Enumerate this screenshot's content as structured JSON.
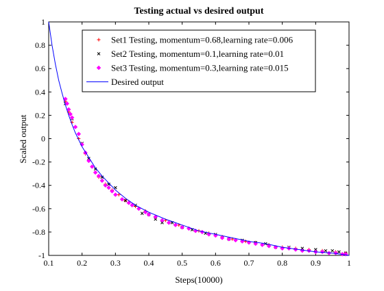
{
  "chart_data": {
    "type": "scatter",
    "title": "Testing actual vs desired output",
    "xlabel": "Steps(10000)",
    "ylabel": "Scaled output",
    "xlim": [
      0.1,
      1
    ],
    "ylim": [
      -1,
      1
    ],
    "xticks": [
      0.1,
      0.2,
      0.3,
      0.4,
      0.5,
      0.6,
      0.7,
      0.8,
      0.9,
      1
    ],
    "xtick_labels": [
      "0.1",
      "0.2",
      "0.3",
      "0.4",
      "0.5",
      "0.6",
      "0.7",
      "0.8",
      "0.9",
      "1"
    ],
    "yticks": [
      -1,
      -0.8,
      -0.6,
      -0.4,
      -0.2,
      0,
      0.2,
      0.4,
      0.6,
      0.8,
      1
    ],
    "ytick_labels": [
      "-1",
      "-0.8",
      "-0.6",
      "-0.4",
      "-0.2",
      "0",
      "0.2",
      "0.4",
      "0.6",
      "0.8",
      "1"
    ],
    "grid": false,
    "legend_position": "top-right",
    "series": [
      {
        "name": "Set1 Testing, momentum=0.68,learning rate=0.006",
        "color": "#ff0000",
        "marker": "plus",
        "x": [
          0.15,
          0.16,
          0.17,
          0.19,
          0.21,
          0.22,
          0.24,
          0.25,
          0.27,
          0.29,
          0.31,
          0.33,
          0.36,
          0.39,
          0.42,
          0.45,
          0.49,
          0.52,
          0.55,
          0.58,
          0.62,
          0.65,
          0.69,
          0.72,
          0.76,
          0.8,
          0.84,
          0.88,
          0.92,
          0.96,
          0.99
        ],
        "y": [
          0.32,
          0.23,
          0.14,
          0.0,
          -0.13,
          -0.19,
          -0.29,
          -0.33,
          -0.39,
          -0.44,
          -0.48,
          -0.53,
          -0.58,
          -0.62,
          -0.67,
          -0.7,
          -0.74,
          -0.77,
          -0.79,
          -0.81,
          -0.84,
          -0.86,
          -0.88,
          -0.89,
          -0.91,
          -0.93,
          -0.94,
          -0.95,
          -0.96,
          -0.97,
          -0.98
        ]
      },
      {
        "name": "Set2 Testing, momentum=0.1,learning rate=0.01",
        "color": "#000000",
        "marker": "x",
        "x": [
          0.15,
          0.17,
          0.2,
          0.22,
          0.24,
          0.26,
          0.28,
          0.3,
          0.33,
          0.36,
          0.38,
          0.4,
          0.42,
          0.44,
          0.47,
          0.5,
          0.53,
          0.57,
          0.6,
          0.64,
          0.68,
          0.72,
          0.75,
          0.78,
          0.82,
          0.86,
          0.9,
          0.93,
          0.95,
          0.97,
          0.99
        ],
        "y": [
          0.3,
          0.17,
          -0.04,
          -0.17,
          -0.26,
          -0.33,
          -0.39,
          -0.42,
          -0.53,
          -0.57,
          -0.64,
          -0.65,
          -0.69,
          -0.72,
          -0.72,
          -0.76,
          -0.78,
          -0.81,
          -0.82,
          -0.86,
          -0.87,
          -0.89,
          -0.9,
          -0.93,
          -0.93,
          -0.94,
          -0.95,
          -0.96,
          -0.96,
          -0.97,
          -0.98
        ]
      },
      {
        "name": "Set3 Testing, momentum=0.3,learning rate=0.015",
        "color": "#ff00ff",
        "marker": "diamond",
        "x": [
          0.15,
          0.155,
          0.16,
          0.165,
          0.17,
          0.18,
          0.19,
          0.2,
          0.21,
          0.22,
          0.23,
          0.24,
          0.25,
          0.26,
          0.27,
          0.28,
          0.29,
          0.3,
          0.32,
          0.34,
          0.35,
          0.37,
          0.39,
          0.4,
          0.42,
          0.44,
          0.46,
          0.48,
          0.5,
          0.52,
          0.54,
          0.56,
          0.58,
          0.6,
          0.62,
          0.64,
          0.66,
          0.68,
          0.7,
          0.72,
          0.74,
          0.76,
          0.78,
          0.8,
          0.82,
          0.84,
          0.86,
          0.88,
          0.9,
          0.92,
          0.94,
          0.96,
          0.98,
          0.99
        ],
        "y": [
          0.34,
          0.3,
          0.25,
          0.21,
          0.18,
          0.1,
          0.04,
          -0.05,
          -0.12,
          -0.19,
          -0.24,
          -0.29,
          -0.32,
          -0.36,
          -0.4,
          -0.42,
          -0.45,
          -0.48,
          -0.52,
          -0.55,
          -0.57,
          -0.6,
          -0.63,
          -0.65,
          -0.67,
          -0.7,
          -0.72,
          -0.74,
          -0.76,
          -0.77,
          -0.79,
          -0.8,
          -0.82,
          -0.83,
          -0.85,
          -0.86,
          -0.87,
          -0.88,
          -0.89,
          -0.9,
          -0.91,
          -0.92,
          -0.93,
          -0.94,
          -0.94,
          -0.95,
          -0.96,
          -0.96,
          -0.97,
          -0.97,
          -0.98,
          -0.98,
          -0.99,
          -0.99
        ]
      },
      {
        "name": "Desired output",
        "color": "#0000ff",
        "marker": "line",
        "x": [
          0.1,
          0.11,
          0.12,
          0.13,
          0.14,
          0.15,
          0.16,
          0.17,
          0.18,
          0.19,
          0.2,
          0.22,
          0.24,
          0.26,
          0.28,
          0.3,
          0.33,
          0.36,
          0.4,
          0.45,
          0.5,
          0.55,
          0.6,
          0.65,
          0.7,
          0.75,
          0.8,
          0.85,
          0.9,
          0.95,
          1.0
        ],
        "y": [
          1.0,
          0.8,
          0.64,
          0.5,
          0.39,
          0.29,
          0.2,
          0.12,
          0.05,
          -0.01,
          -0.07,
          -0.16,
          -0.25,
          -0.32,
          -0.38,
          -0.44,
          -0.51,
          -0.57,
          -0.63,
          -0.69,
          -0.74,
          -0.79,
          -0.82,
          -0.85,
          -0.88,
          -0.9,
          -0.93,
          -0.95,
          -0.97,
          -0.98,
          -1.0
        ]
      }
    ]
  }
}
